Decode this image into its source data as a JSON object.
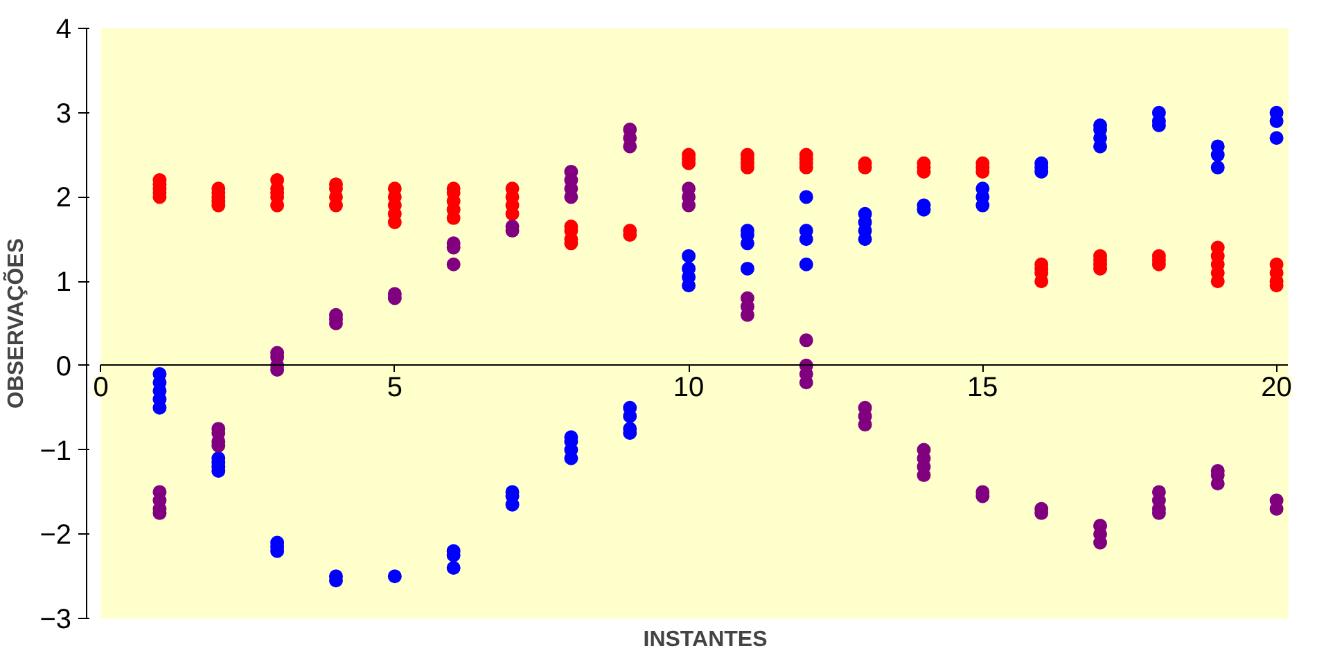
{
  "chart_data": {
    "type": "scatter",
    "xlabel": "INSTANTES",
    "ylabel": "OBSERVAÇÕES",
    "xlim": [
      0,
      20.2
    ],
    "ylim": [
      -3,
      4
    ],
    "xticks": [
      0,
      5,
      10,
      15,
      20
    ],
    "yticks": [
      -3,
      -2,
      -1,
      0,
      1,
      2,
      3,
      4
    ],
    "grid": false,
    "marker": "circle",
    "series": [
      {
        "color": "#ff0000",
        "x": [
          1,
          1,
          1,
          1,
          1,
          2,
          2,
          2,
          2,
          2,
          3,
          3,
          3,
          3,
          3,
          4,
          4,
          4,
          4,
          5,
          5,
          5,
          5,
          5,
          6,
          6,
          6,
          6,
          6,
          7,
          7,
          7,
          7,
          8,
          8,
          8,
          8,
          9,
          9,
          10,
          10,
          10,
          11,
          11,
          11,
          11,
          12,
          12,
          12,
          12,
          13,
          13,
          14,
          14,
          14,
          15,
          15,
          15,
          16,
          16,
          16,
          16,
          17,
          17,
          17,
          17,
          18,
          18,
          18,
          19,
          19,
          19,
          19,
          19,
          20,
          20,
          20,
          20
        ],
        "values": [
          2.0,
          2.05,
          2.1,
          2.15,
          2.2,
          1.9,
          1.95,
          2.0,
          2.05,
          2.1,
          1.9,
          2.0,
          2.05,
          2.1,
          2.2,
          1.9,
          2.0,
          2.1,
          2.15,
          1.7,
          1.8,
          1.9,
          2.0,
          2.1,
          1.75,
          1.85,
          1.95,
          2.05,
          2.1,
          1.8,
          1.9,
          2.0,
          2.1,
          1.45,
          1.5,
          1.6,
          1.65,
          1.55,
          1.6,
          2.4,
          2.45,
          2.5,
          2.35,
          2.4,
          2.45,
          2.5,
          2.35,
          2.4,
          2.45,
          2.5,
          2.35,
          2.4,
          2.3,
          2.35,
          2.4,
          2.3,
          2.35,
          2.4,
          1.0,
          1.1,
          1.15,
          1.2,
          1.15,
          1.2,
          1.25,
          1.3,
          1.2,
          1.25,
          1.3,
          1.0,
          1.1,
          1.2,
          1.3,
          1.4,
          0.95,
          1.0,
          1.1,
          1.2
        ]
      },
      {
        "color": "#0000ff",
        "x": [
          1,
          1,
          1,
          1,
          1,
          2,
          2,
          2,
          2,
          3,
          3,
          3,
          4,
          4,
          5,
          6,
          6,
          6,
          7,
          7,
          7,
          8,
          8,
          8,
          8,
          9,
          9,
          9,
          9,
          10,
          10,
          10,
          10,
          11,
          11,
          11,
          11,
          12,
          12,
          12,
          12,
          13,
          13,
          13,
          13,
          14,
          14,
          15,
          15,
          15,
          16,
          16,
          16,
          17,
          17,
          17,
          17,
          18,
          18,
          18,
          19,
          19,
          19,
          20,
          20,
          20
        ],
        "values": [
          -0.1,
          -0.2,
          -0.3,
          -0.4,
          -0.5,
          -1.1,
          -1.15,
          -1.2,
          -1.25,
          -2.1,
          -2.15,
          -2.2,
          -2.5,
          -2.55,
          -2.5,
          -2.2,
          -2.25,
          -2.4,
          -1.5,
          -1.55,
          -1.65,
          -0.85,
          -0.9,
          -1.0,
          -1.1,
          -0.5,
          -0.6,
          -0.75,
          -0.8,
          0.95,
          1.05,
          1.15,
          1.3,
          1.45,
          1.55,
          1.6,
          1.15,
          2.0,
          1.6,
          1.5,
          1.2,
          1.5,
          1.6,
          1.7,
          1.8,
          1.85,
          1.9,
          1.9,
          2.0,
          2.1,
          2.3,
          2.35,
          2.4,
          2.6,
          2.7,
          2.8,
          2.85,
          2.85,
          2.9,
          3.0,
          2.35,
          2.5,
          2.6,
          2.7,
          2.9,
          3.0
        ]
      },
      {
        "color": "#800080",
        "x": [
          1,
          1,
          1,
          1,
          2,
          2,
          2,
          2,
          3,
          3,
          3,
          3,
          4,
          4,
          4,
          5,
          5,
          6,
          6,
          6,
          7,
          7,
          8,
          8,
          8,
          8,
          9,
          9,
          9,
          10,
          10,
          10,
          11,
          11,
          11,
          12,
          12,
          12,
          12,
          13,
          13,
          13,
          14,
          14,
          14,
          14,
          15,
          15,
          16,
          16,
          17,
          17,
          17,
          18,
          18,
          18,
          18,
          19,
          19,
          19,
          20,
          20
        ],
        "values": [
          -1.5,
          -1.6,
          -1.7,
          -1.75,
          -0.75,
          -0.8,
          -0.9,
          -0.95,
          -0.05,
          0.0,
          0.1,
          0.15,
          0.5,
          0.55,
          0.6,
          0.8,
          0.85,
          1.2,
          1.4,
          1.45,
          1.6,
          1.65,
          2.0,
          2.1,
          2.2,
          2.3,
          2.6,
          2.7,
          2.8,
          1.9,
          2.0,
          2.1,
          0.6,
          0.7,
          0.8,
          0.3,
          0.0,
          -0.1,
          -0.2,
          -0.5,
          -0.6,
          -0.7,
          -1.0,
          -1.1,
          -1.2,
          -1.3,
          -1.5,
          -1.55,
          -1.7,
          -1.75,
          -1.9,
          -2.0,
          -2.1,
          -1.5,
          -1.6,
          -1.7,
          -1.75,
          -1.25,
          -1.3,
          -1.4,
          -1.6,
          -1.7
        ]
      }
    ]
  }
}
